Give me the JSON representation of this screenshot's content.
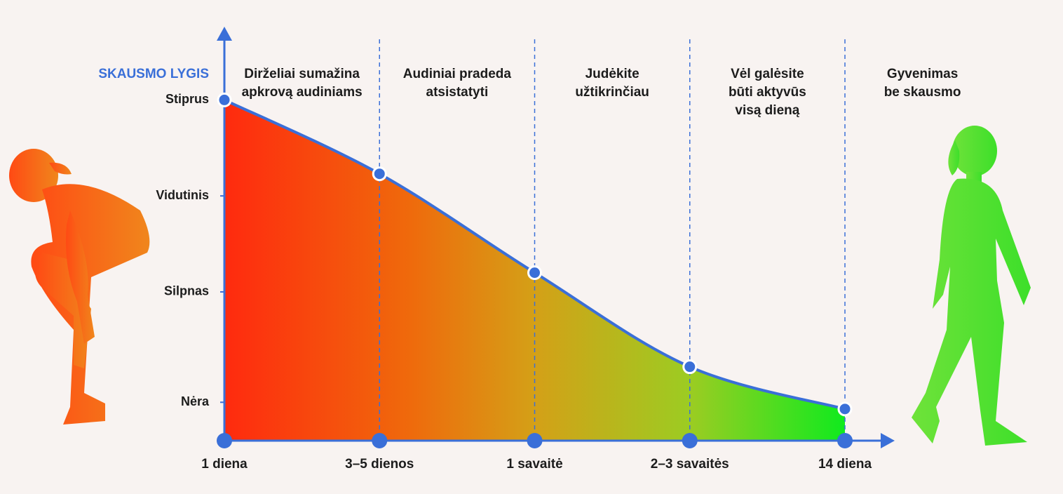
{
  "chart_data": {
    "type": "area",
    "y_label": "SKAUSMO LYGIS",
    "categories": [
      "1 diena",
      "3–5 dienos",
      "1 savaitė",
      "2–3 savaitės",
      "14 diena"
    ],
    "values": [
      3,
      2.23,
      1.2,
      0.22,
      -0.22
    ],
    "ylim": [
      -0.55,
      3.5
    ],
    "yticks": [
      {
        "value": 3,
        "label": "Stiprus"
      },
      {
        "value": 2,
        "label": "Vidutinis"
      },
      {
        "value": 1,
        "label": "Silpnas"
      },
      {
        "value": -0.15,
        "label": "Nėra"
      }
    ],
    "stages": [
      [
        "Dirželiai sumažina",
        "apkrovą audiniams"
      ],
      [
        "Audiniai pradeda",
        "atsistatyti"
      ],
      [
        "Judėkite",
        "užtikrinčiau"
      ],
      [
        "Vėl galėsite",
        "būti aktyvūs",
        "visą dieną"
      ],
      [
        "Gyvenimas",
        "be skausmo"
      ]
    ],
    "color": "#3a6fd8"
  }
}
